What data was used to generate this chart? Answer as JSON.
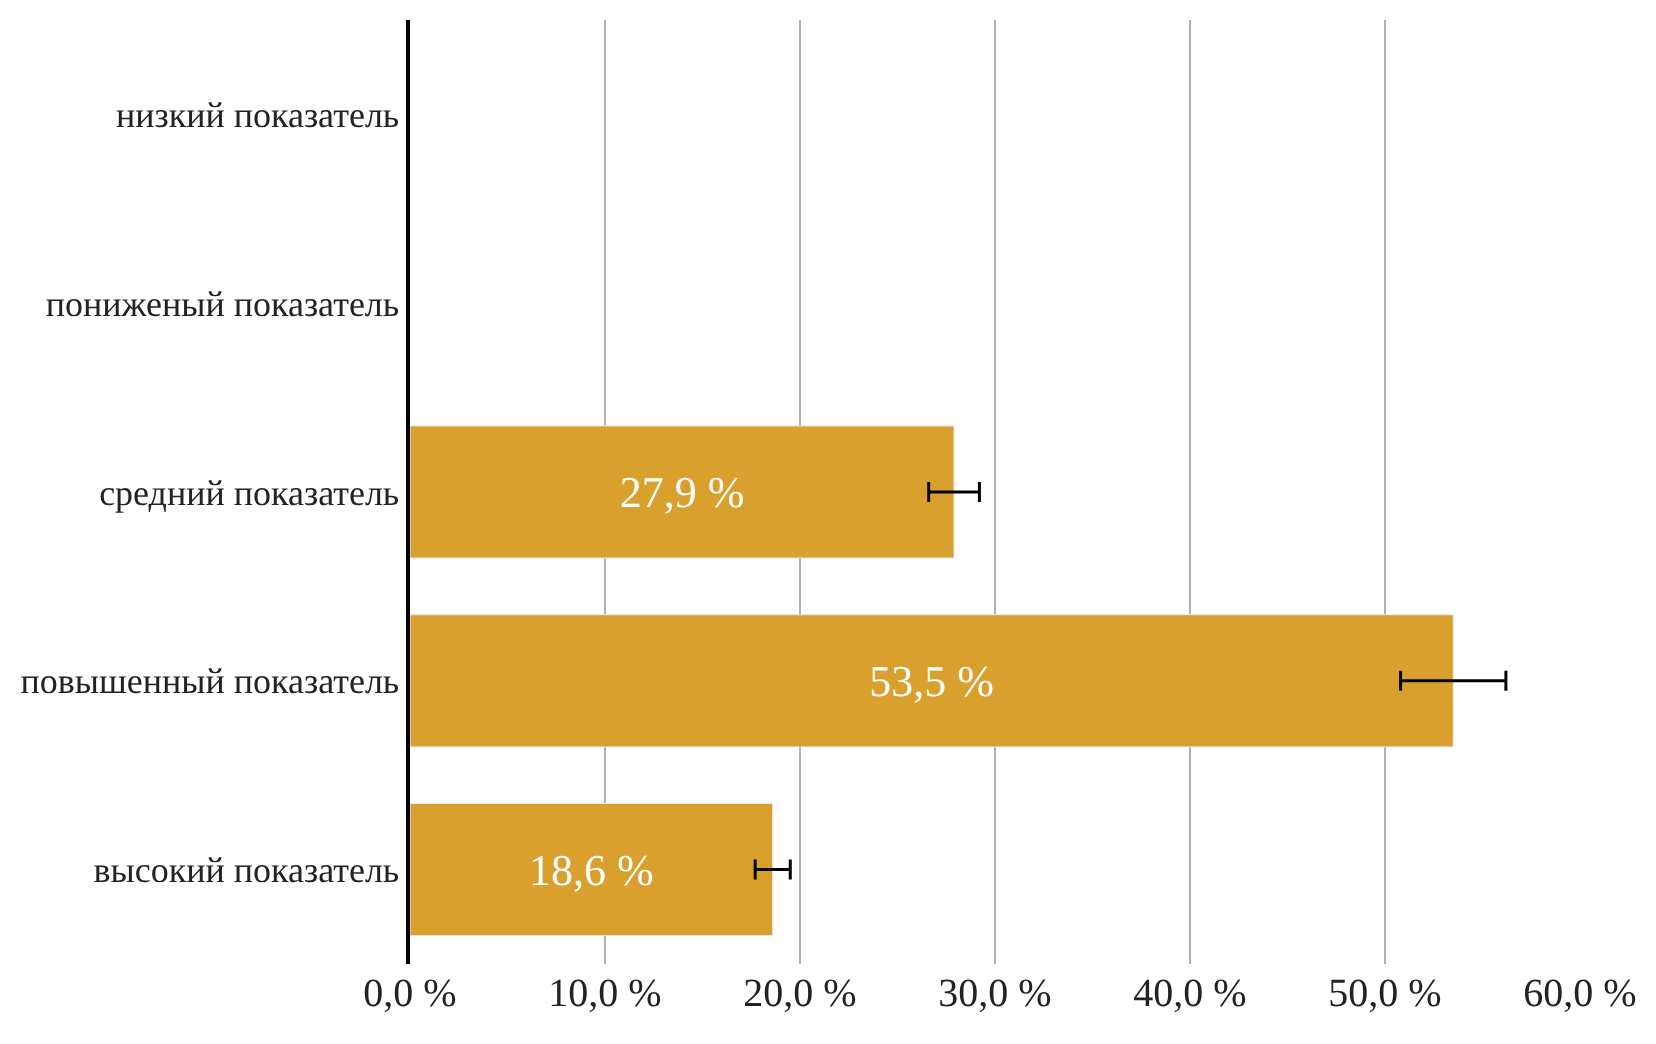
{
  "chart_data": {
    "type": "bar",
    "orientation": "horizontal",
    "categories": [
      "низкий показатель",
      "пониженый показатель",
      "средний показатель",
      "повышенный показатель",
      "высокий показатель"
    ],
    "values": [
      null,
      null,
      27.9,
      53.5,
      18.6
    ],
    "errors": [
      null,
      null,
      1.3,
      2.7,
      0.9
    ],
    "value_labels": [
      null,
      null,
      "27,9 %",
      "53,5 %",
      "18,6 %"
    ],
    "color": "#daa02e",
    "xlim": [
      0,
      60
    ],
    "xticks": [
      {
        "value": 0,
        "label": "0,0 %"
      },
      {
        "value": 10,
        "label": "10,0 %"
      },
      {
        "value": 20,
        "label": "20,0 %"
      },
      {
        "value": 30,
        "label": "30,0 %"
      },
      {
        "value": 40,
        "label": "40,0 %"
      },
      {
        "value": 50,
        "label": "50,0 %"
      },
      {
        "value": 60,
        "label": "60,0 %"
      }
    ],
    "grid": "x",
    "legend": false
  }
}
